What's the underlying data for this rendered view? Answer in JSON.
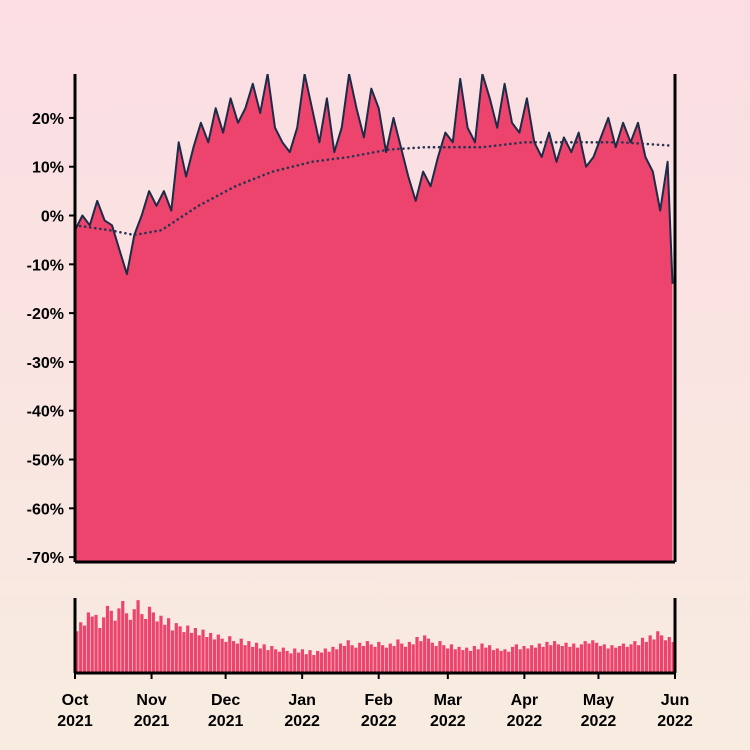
{
  "chart_data": {
    "type": "area",
    "title": "",
    "xlabel": "",
    "ylabel": "",
    "x_range": [
      "2021-10-01",
      "2022-06-01"
    ],
    "y_range_percent": [
      -71,
      29
    ],
    "y_ticks": [
      20,
      10,
      0,
      -10,
      -20,
      -30,
      -40,
      -50,
      -60,
      -70
    ],
    "y_tick_labels": [
      "20%",
      "10%",
      "0%",
      "-10%",
      "-20%",
      "-30%",
      "-40%",
      "-50%",
      "-60%",
      "-70%"
    ],
    "x_tick_dates": [
      "2021-10-01",
      "2021-11-01",
      "2021-12-01",
      "2022-01-01",
      "2022-02-01",
      "2022-03-01",
      "2022-04-01",
      "2022-05-01",
      "2022-06-01"
    ],
    "x_tick_labels": [
      [
        "Oct",
        "2021"
      ],
      [
        "Nov",
        "2021"
      ],
      [
        "Dec",
        "2021"
      ],
      [
        "Jan",
        "2022"
      ],
      [
        "Feb",
        "2022"
      ],
      [
        "Mar",
        "2022"
      ],
      [
        "Apr",
        "2022"
      ],
      [
        "May",
        "2022"
      ],
      [
        "Jun",
        "2022"
      ]
    ],
    "colors": {
      "area_fill": "#ec446c",
      "line": "#1c2b48",
      "average_dots": "#2a3352",
      "volume_bars": "#ec446c",
      "axis": "#000000"
    },
    "grid": false,
    "legend": "none",
    "series": [
      {
        "values": [
          [
            "2021-10-01",
            -3
          ],
          [
            "2021-10-04",
            0
          ],
          [
            "2021-10-07",
            -2
          ],
          [
            "2021-10-10",
            3
          ],
          [
            "2021-10-13",
            -1
          ],
          [
            "2021-10-16",
            -2
          ],
          [
            "2021-10-19",
            -7
          ],
          [
            "2021-10-22",
            -12
          ],
          [
            "2021-10-25",
            -4
          ],
          [
            "2021-10-28",
            0
          ],
          [
            "2021-10-31",
            5
          ],
          [
            "2021-11-03",
            2
          ],
          [
            "2021-11-06",
            5
          ],
          [
            "2021-11-09",
            1
          ],
          [
            "2021-11-12",
            15
          ],
          [
            "2021-11-15",
            8
          ],
          [
            "2021-11-18",
            14
          ],
          [
            "2021-11-21",
            19
          ],
          [
            "2021-11-24",
            15
          ],
          [
            "2021-11-27",
            22
          ],
          [
            "2021-11-30",
            17
          ],
          [
            "2021-12-03",
            24
          ],
          [
            "2021-12-06",
            19
          ],
          [
            "2021-12-09",
            22
          ],
          [
            "2021-12-12",
            27
          ],
          [
            "2021-12-15",
            21
          ],
          [
            "2021-12-18",
            29
          ],
          [
            "2021-12-21",
            18
          ],
          [
            "2021-12-24",
            15
          ],
          [
            "2021-12-27",
            13
          ],
          [
            "2021-12-30",
            18
          ],
          [
            "2022-01-02",
            29
          ],
          [
            "2022-01-05",
            22
          ],
          [
            "2022-01-08",
            15
          ],
          [
            "2022-01-11",
            24
          ],
          [
            "2022-01-14",
            13
          ],
          [
            "2022-01-17",
            18
          ],
          [
            "2022-01-20",
            29
          ],
          [
            "2022-01-23",
            22
          ],
          [
            "2022-01-26",
            16
          ],
          [
            "2022-01-29",
            26
          ],
          [
            "2022-02-01",
            22
          ],
          [
            "2022-02-04",
            13
          ],
          [
            "2022-02-07",
            20
          ],
          [
            "2022-02-10",
            14
          ],
          [
            "2022-02-13",
            8
          ],
          [
            "2022-02-16",
            3
          ],
          [
            "2022-02-19",
            9
          ],
          [
            "2022-02-22",
            6
          ],
          [
            "2022-02-25",
            12
          ],
          [
            "2022-02-28",
            17
          ],
          [
            "2022-03-03",
            15
          ],
          [
            "2022-03-06",
            28
          ],
          [
            "2022-03-09",
            18
          ],
          [
            "2022-03-12",
            15
          ],
          [
            "2022-03-15",
            29
          ],
          [
            "2022-03-18",
            24
          ],
          [
            "2022-03-21",
            18
          ],
          [
            "2022-03-24",
            27
          ],
          [
            "2022-03-27",
            19
          ],
          [
            "2022-03-30",
            17
          ],
          [
            "2022-04-02",
            24
          ],
          [
            "2022-04-05",
            15
          ],
          [
            "2022-04-08",
            12
          ],
          [
            "2022-04-11",
            17
          ],
          [
            "2022-04-14",
            11
          ],
          [
            "2022-04-17",
            16
          ],
          [
            "2022-04-20",
            13
          ],
          [
            "2022-04-23",
            17
          ],
          [
            "2022-04-26",
            10
          ],
          [
            "2022-04-29",
            12
          ],
          [
            "2022-05-02",
            16
          ],
          [
            "2022-05-05",
            20
          ],
          [
            "2022-05-08",
            14
          ],
          [
            "2022-05-11",
            19
          ],
          [
            "2022-05-14",
            15
          ],
          [
            "2022-05-17",
            19
          ],
          [
            "2022-05-20",
            12
          ],
          [
            "2022-05-23",
            9
          ],
          [
            "2022-05-26",
            1
          ],
          [
            "2022-05-29",
            11
          ],
          [
            "2022-05-31",
            -14
          ]
        ]
      },
      {
        "values": [
          [
            "2021-10-01",
            -2
          ],
          [
            "2021-10-15",
            -3
          ],
          [
            "2021-10-25",
            -4
          ],
          [
            "2021-11-05",
            -3
          ],
          [
            "2021-11-20",
            2
          ],
          [
            "2021-12-05",
            6
          ],
          [
            "2021-12-20",
            9
          ],
          [
            "2022-01-05",
            11
          ],
          [
            "2022-01-20",
            12
          ],
          [
            "2022-02-05",
            13.5
          ],
          [
            "2022-02-20",
            14
          ],
          [
            "2022-03-15",
            14
          ],
          [
            "2022-04-01",
            15
          ],
          [
            "2022-04-20",
            15
          ],
          [
            "2022-05-10",
            15
          ],
          [
            "2022-05-31",
            14.3
          ]
        ]
      }
    ],
    "volume": {
      "values": [
        5.1,
        6.2,
        5.8,
        7.4,
        6.9,
        7.1,
        5.5,
        6.8,
        8.2,
        7.6,
        6.4,
        7.9,
        8.8,
        7.3,
        6.5,
        7.8,
        8.9,
        7.2,
        6.6,
        8.1,
        7.4,
        6.3,
        7.0,
        5.9,
        6.7,
        5.2,
        6.1,
        5.7,
        5.0,
        5.8,
        4.9,
        5.5,
        4.6,
        5.3,
        4.4,
        4.9,
        4.1,
        4.7,
        4.2,
        3.8,
        4.5,
        3.9,
        3.6,
        4.2,
        3.4,
        3.9,
        3.2,
        3.7,
        3.0,
        3.5,
        2.8,
        3.3,
        2.9,
        2.6,
        3.1,
        2.7,
        2.4,
        3.0,
        2.5,
        2.9,
        2.3,
        2.8,
        2.2,
        2.7,
        2.5,
        3.0,
        2.6,
        3.2,
        2.9,
        3.6,
        3.3,
        4.0,
        3.4,
        3.1,
        3.7,
        3.3,
        3.9,
        3.5,
        3.2,
        3.8,
        3.4,
        3.1,
        3.6,
        3.3,
        4.1,
        3.6,
        3.2,
        3.8,
        3.5,
        4.4,
        3.9,
        4.6,
        4.2,
        3.7,
        3.3,
        3.9,
        3.4,
        3.0,
        3.5,
        2.9,
        3.2,
        2.8,
        3.1,
        2.7,
        3.3,
        2.9,
        3.6,
        3.1,
        3.4,
        2.8,
        3.0,
        2.7,
        2.9,
        2.6,
        3.2,
        3.5,
        2.9,
        3.3,
        3.0,
        3.4,
        3.1,
        3.6,
        3.2,
        3.8,
        3.4,
        3.9,
        3.5,
        3.3,
        3.7,
        3.2,
        3.6,
        3.1,
        3.5,
        3.9,
        3.6,
        4.0,
        3.7,
        3.3,
        3.5,
        3.0,
        3.4,
        3.1,
        3.3,
        3.6,
        3.2,
        3.5,
        3.9,
        3.4,
        4.3,
        3.8,
        4.6,
        4.1,
        5.1,
        4.6,
        4.0,
        4.4,
        3.8
      ]
    }
  }
}
